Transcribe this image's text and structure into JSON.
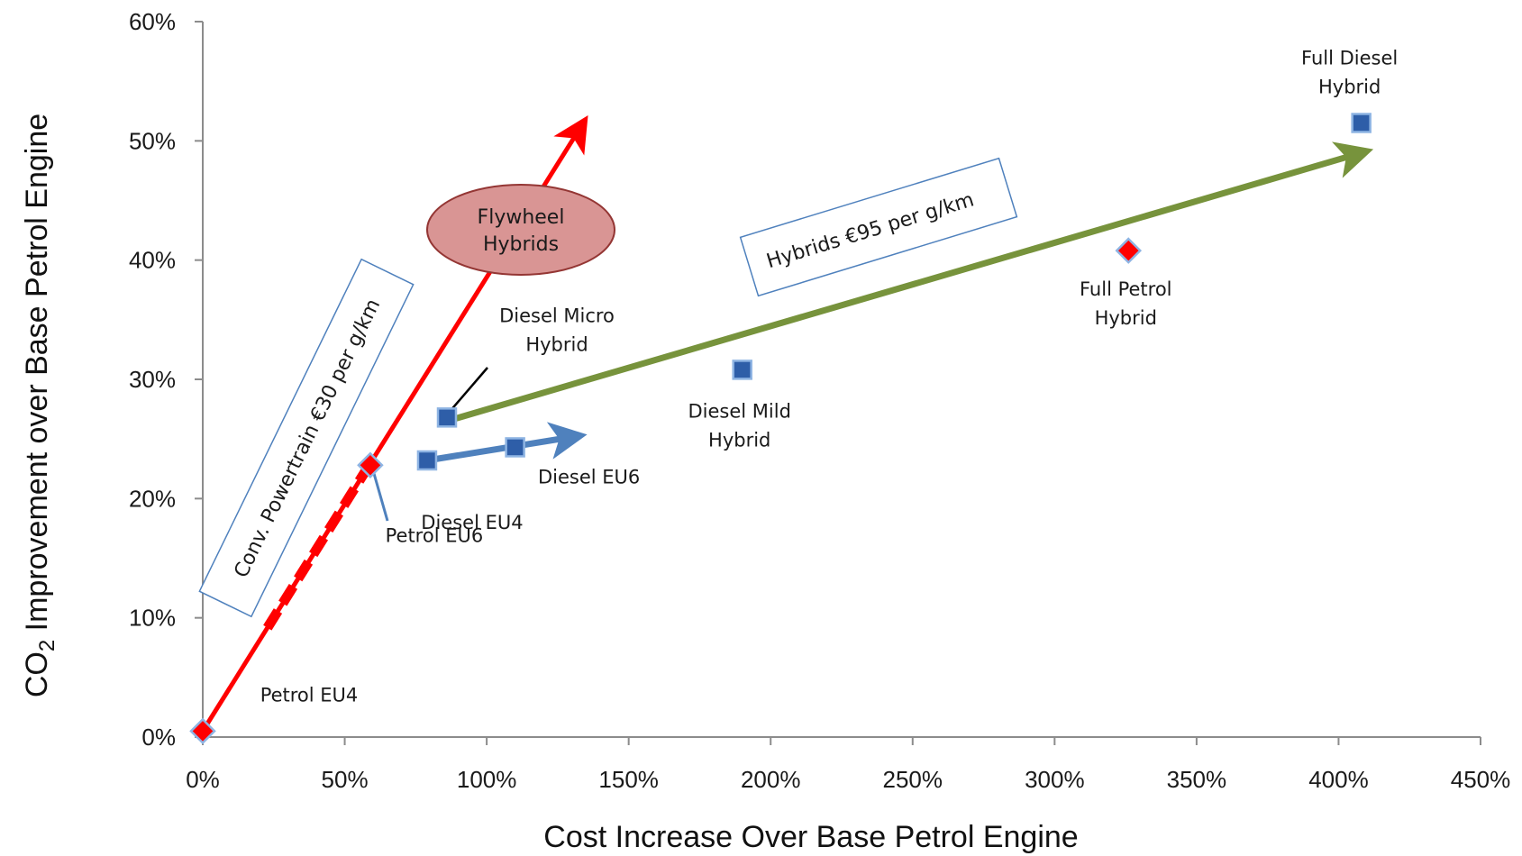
{
  "chart_data": {
    "type": "scatter",
    "xlabel": "Cost Increase Over Base Petrol Engine",
    "ylabel_main": "CO",
    "ylabel_sub": "2",
    "ylabel_rest": " Improvement over Base Petrol Engine",
    "xlim": [
      0,
      4.5
    ],
    "ylim": [
      0,
      0.6
    ],
    "x_ticks": [
      {
        "value": 0,
        "label": "0%"
      },
      {
        "value": 0.5,
        "label": "50%"
      },
      {
        "value": 1.0,
        "label": "100%"
      },
      {
        "value": 1.5,
        "label": "150%"
      },
      {
        "value": 2.0,
        "label": "200%"
      },
      {
        "value": 2.5,
        "label": "250%"
      },
      {
        "value": 3.0,
        "label": "300%"
      },
      {
        "value": 3.5,
        "label": "350%"
      },
      {
        "value": 4.0,
        "label": "400%"
      },
      {
        "value": 4.5,
        "label": "450%"
      }
    ],
    "y_ticks": [
      {
        "value": 0,
        "label": "0%"
      },
      {
        "value": 0.1,
        "label": "10%"
      },
      {
        "value": 0.2,
        "label": "20%"
      },
      {
        "value": 0.3,
        "label": "30%"
      },
      {
        "value": 0.4,
        "label": "40%"
      },
      {
        "value": 0.5,
        "label": "50%"
      },
      {
        "value": 0.6,
        "label": "60%"
      }
    ],
    "points": [
      {
        "label": [
          "Petrol EU4"
        ],
        "x": 0.0,
        "y": 0.005,
        "marker": "diamond",
        "color": "#ff0000"
      },
      {
        "label": [
          "Petrol EU6"
        ],
        "x": 0.59,
        "y": 0.228,
        "marker": "diamond",
        "color": "#ff0000"
      },
      {
        "label": [
          "Diesel EU4"
        ],
        "x": 0.79,
        "y": 0.232,
        "marker": "square",
        "color": "#2e5ea8"
      },
      {
        "label": [
          "Diesel EU6"
        ],
        "x": 1.1,
        "y": 0.243,
        "marker": "square",
        "color": "#2e5ea8"
      },
      {
        "label": [
          "Diesel Micro",
          "Hybrid"
        ],
        "x": 0.86,
        "y": 0.268,
        "marker": "square",
        "color": "#2e5ea8"
      },
      {
        "label": [
          "Diesel Mild",
          "Hybrid"
        ],
        "x": 1.9,
        "y": 0.308,
        "marker": "square",
        "color": "#2e5ea8"
      },
      {
        "label": [
          "Full Petrol",
          "Hybrid"
        ],
        "x": 3.26,
        "y": 0.408,
        "marker": "diamond",
        "color": "#ff0000"
      },
      {
        "label": [
          "Full Diesel",
          "Hybrid"
        ],
        "x": 4.08,
        "y": 0.515,
        "marker": "square",
        "color": "#2e5ea8"
      }
    ],
    "annotations": {
      "conv_box": "Conv. Powertrain €30 per g/km",
      "hybrids_box": "Hybrids €95 per g/km",
      "flywheel_line1": "Flywheel",
      "flywheel_line2": "Hybrids"
    },
    "trend_arrows": [
      {
        "name": "conventional-arrow",
        "from": [
          0.0,
          0.005
        ],
        "to": [
          1.34,
          0.515
        ],
        "color": "#ff0000"
      },
      {
        "name": "hybrid-arrow",
        "from": [
          0.86,
          0.265
        ],
        "to": [
          4.08,
          0.49
        ],
        "color": "#77933c"
      },
      {
        "name": "diesel-arrow",
        "from": [
          0.79,
          0.232
        ],
        "to": [
          1.31,
          0.252
        ],
        "color": "#4f81bd"
      }
    ],
    "colors": {
      "axis": "#8c8c8c",
      "red": "#ff0000",
      "green": "#77933c",
      "blue": "#4f81bd",
      "flywheel": "#d99594"
    }
  }
}
